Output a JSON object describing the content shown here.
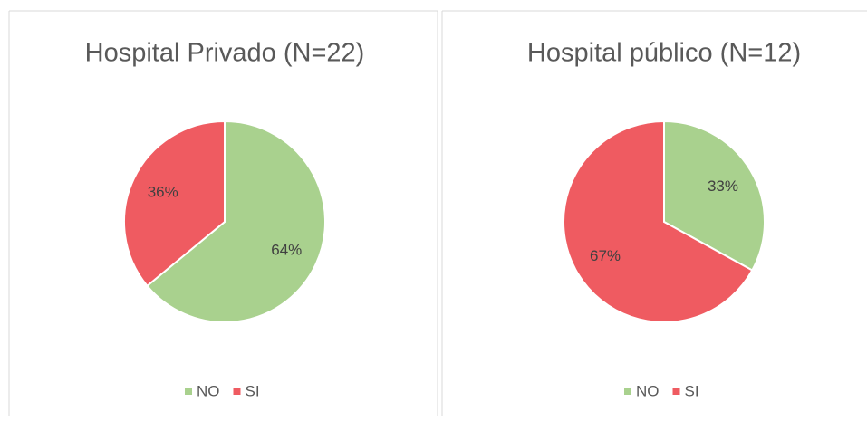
{
  "chart_data": [
    {
      "type": "pie",
      "title": "Hospital Privado (N=22)",
      "categories": [
        "NO",
        "SI"
      ],
      "values": [
        64,
        36
      ],
      "value_labels": [
        "64%",
        "36%"
      ],
      "colors": [
        "#a9d18e",
        "#ef5b61"
      ]
    },
    {
      "type": "pie",
      "title": "Hospital público (N=12)",
      "categories": [
        "NO",
        "SI"
      ],
      "values": [
        33,
        67
      ],
      "value_labels": [
        "33%",
        "67%"
      ],
      "colors": [
        "#a9d18e",
        "#ef5b61"
      ]
    }
  ]
}
